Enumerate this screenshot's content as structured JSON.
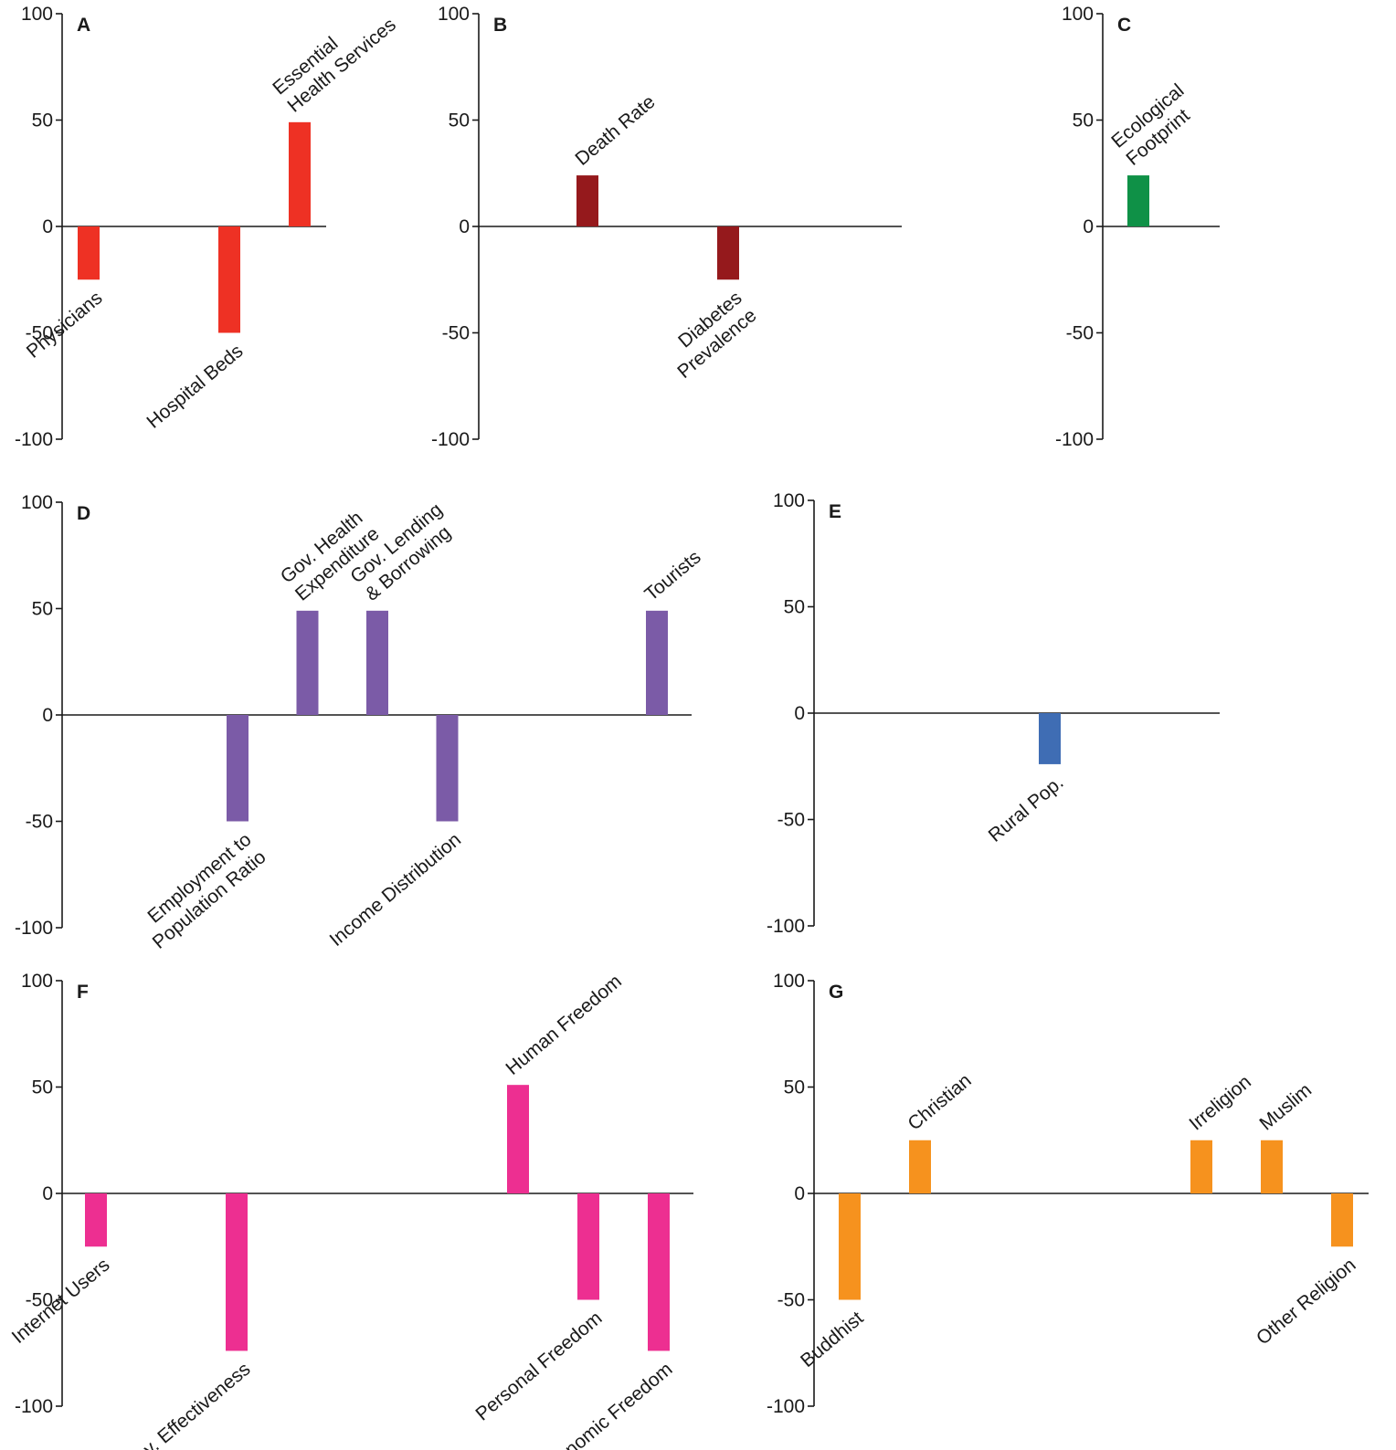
{
  "chart_data": [
    {
      "type": "bar",
      "panel": "A",
      "color": "#ee3124",
      "ylim": [
        -100,
        100
      ],
      "yticks": [
        "100",
        "50",
        "0",
        "-50",
        "-100"
      ],
      "bars": [
        {
          "label": [
            "Physicians"
          ],
          "value": -25,
          "slot": 0
        },
        {
          "label": [
            "Hospital Beds"
          ],
          "value": -50,
          "slot": 2
        },
        {
          "label": [
            "Essential",
            "Health Services"
          ],
          "value": 49,
          "slot": 3
        }
      ]
    },
    {
      "type": "bar",
      "panel": "B",
      "color": "#95191c",
      "ylim": [
        -100,
        100
      ],
      "yticks": [
        "100",
        "50",
        "0",
        "-50",
        "-100"
      ],
      "bars": [
        {
          "label": [
            "Death Rate"
          ],
          "value": 24,
          "slot": 1
        },
        {
          "label": [
            "Diabetes",
            "Prevalence"
          ],
          "value": -25,
          "slot": 3
        }
      ]
    },
    {
      "type": "bar",
      "panel": "C",
      "color": "#0f9147",
      "ylim": [
        -100,
        100
      ],
      "yticks": [
        "100",
        "50",
        "0",
        "-50",
        "-100"
      ],
      "bars": [
        {
          "label": [
            "Ecological",
            "Footprint"
          ],
          "value": 24,
          "slot": 0
        }
      ]
    },
    {
      "type": "bar",
      "panel": "D",
      "color": "#7b5ba7",
      "ylim": [
        -100,
        100
      ],
      "yticks": [
        "100",
        "50",
        "0",
        "-50",
        "-100"
      ],
      "bars": [
        {
          "label": [
            "Employment to",
            "Population Ratio"
          ],
          "value": -50,
          "slot": 2
        },
        {
          "label": [
            "Gov. Health",
            "Expenditure"
          ],
          "value": 49,
          "slot": 3
        },
        {
          "label": [
            "Gov. Lending",
            "& Borrowing"
          ],
          "value": 49,
          "slot": 4
        },
        {
          "label": [
            "Income Distribution"
          ],
          "value": -50,
          "slot": 5
        },
        {
          "label": [
            "Tourists"
          ],
          "value": 49,
          "slot": 8
        }
      ]
    },
    {
      "type": "bar",
      "panel": "E",
      "color": "#3f6db4",
      "ylim": [
        -100,
        100
      ],
      "yticks": [
        "100",
        "50",
        "0",
        "-50",
        "-100"
      ],
      "bars": [
        {
          "label": [
            "Rural Pop."
          ],
          "value": -24,
          "slot": 3
        }
      ]
    },
    {
      "type": "bar",
      "panel": "F",
      "color": "#ed2f91",
      "ylim": [
        -100,
        100
      ],
      "yticks": [
        "100",
        "50",
        "0",
        "-50",
        "-100"
      ],
      "bars": [
        {
          "label": [
            "Internet Users"
          ],
          "value": -25,
          "slot": 0
        },
        {
          "label": [
            "Gov. Effectiveness"
          ],
          "value": -74,
          "slot": 2
        },
        {
          "label": [
            "Human Freedom"
          ],
          "value": 51,
          "slot": 6
        },
        {
          "label": [
            "Personal Freedom"
          ],
          "value": -50,
          "slot": 7
        },
        {
          "label": [
            "Economic Freedom"
          ],
          "value": -74,
          "slot": 8
        }
      ]
    },
    {
      "type": "bar",
      "panel": "G",
      "color": "#f6921e",
      "ylim": [
        -100,
        100
      ],
      "yticks": [
        "100",
        "50",
        "0",
        "-50",
        "-100"
      ],
      "bars": [
        {
          "label": [
            "Buddhist"
          ],
          "value": -50,
          "slot": 0
        },
        {
          "label": [
            "Christian"
          ],
          "value": 25,
          "slot": 1
        },
        {
          "label": [
            "Irreligion"
          ],
          "value": 25,
          "slot": 5
        },
        {
          "label": [
            "Muslim"
          ],
          "value": 25,
          "slot": 6
        },
        {
          "label": [
            "Other Religion"
          ],
          "value": -25,
          "slot": 7
        }
      ]
    }
  ]
}
